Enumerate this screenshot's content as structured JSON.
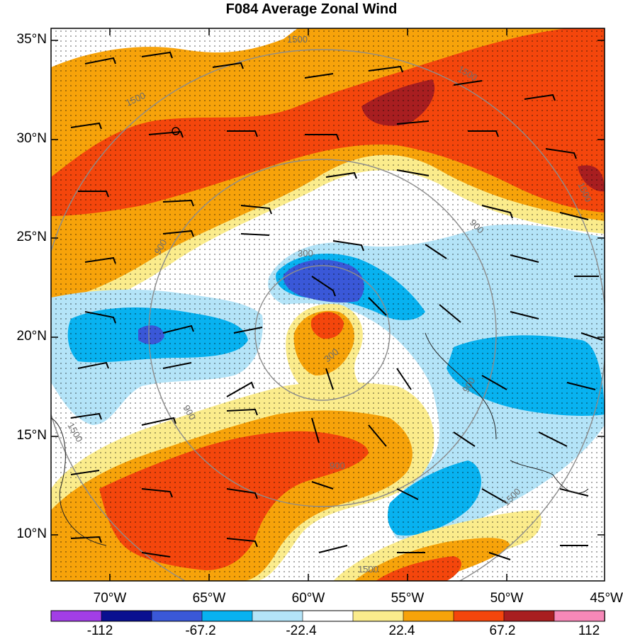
{
  "title": "F084 Average Zonal Wind",
  "lat_labels": [
    "35°N",
    "30°N",
    "25°N",
    "20°N",
    "15°N",
    "10°N"
  ],
  "lon_labels": [
    "70°W",
    "65°W",
    "60°W",
    "55°W",
    "50°W",
    "45°W"
  ],
  "contour_labels": [
    "1500",
    "1500",
    "1500",
    "1500",
    "1500",
    "1500",
    "1500",
    "900",
    "900",
    "900",
    "900",
    "900",
    "300",
    "300"
  ],
  "colorbar": {
    "labels": [
      "-112",
      "-67.2",
      "-22.4",
      "22.4",
      "67.2",
      "112"
    ],
    "colors": [
      "#a23ee6",
      "#0a1090",
      "#3a58d8",
      "#08b2f0",
      "#b4e4f8",
      "#ffffff",
      "#fbec8c",
      "#f7a30a",
      "#f4460c",
      "#a81e20",
      "#f788b8"
    ]
  }
}
